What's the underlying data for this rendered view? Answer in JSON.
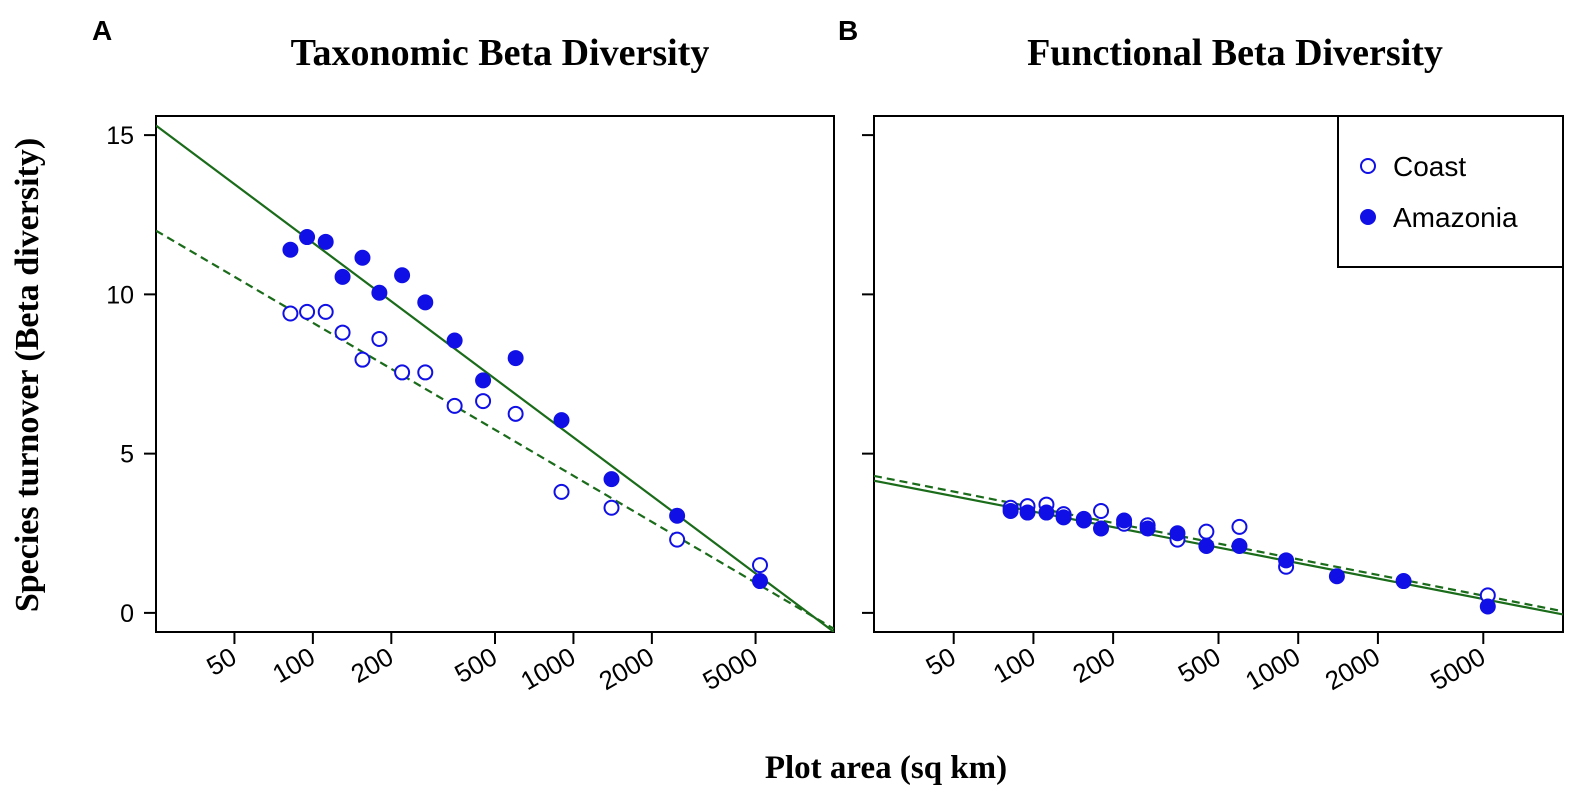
{
  "figure": {
    "xlabel": "Plot area (sq km)",
    "ylabel": "Species turnover (Beta diversity)"
  },
  "colors": {
    "point": "#1010e6",
    "line": "#1a6b1a",
    "axis": "#000000"
  },
  "chart_data": [
    {
      "panel_letter": "A",
      "title": "Taxonomic Beta Diversity",
      "type": "scatter",
      "xscale": "log",
      "xlim": [
        25,
        10000
      ],
      "ylim": [
        -0.6,
        15.6
      ],
      "x_ticks": [
        50,
        100,
        200,
        500,
        1000,
        2000,
        5000
      ],
      "x_tick_labels": [
        "50",
        "100",
        "200",
        "500",
        "1000",
        "2000",
        "5000"
      ],
      "y_ticks": [
        0,
        5,
        10,
        15
      ],
      "y_tick_labels": [
        "0",
        "5",
        "10",
        "15"
      ],
      "show_y_labels": true,
      "series": [
        {
          "name": "Coast",
          "marker": "open-circle",
          "x": [
            82,
            95,
            112,
            130,
            155,
            180,
            220,
            270,
            350,
            450,
            600,
            900,
            1400,
            2500,
            5200
          ],
          "y": [
            9.4,
            9.45,
            9.45,
            8.8,
            7.95,
            8.6,
            7.55,
            7.55,
            6.5,
            6.65,
            6.25,
            3.8,
            3.3,
            2.3,
            1.5
          ]
        },
        {
          "name": "Amazonia",
          "marker": "filled-circle",
          "x": [
            82,
            95,
            112,
            130,
            155,
            180,
            220,
            270,
            350,
            450,
            600,
            900,
            1400,
            2500,
            5200
          ],
          "y": [
            11.4,
            11.8,
            11.65,
            10.55,
            11.15,
            10.05,
            10.6,
            9.75,
            8.55,
            7.3,
            8.0,
            6.05,
            4.2,
            3.05,
            1.0
          ]
        }
      ],
      "fit_lines": [
        {
          "series": "Amazonia",
          "style": "solid",
          "x": [
            25,
            10000
          ],
          "y": [
            15.3,
            -0.6
          ]
        },
        {
          "series": "Coast",
          "style": "dashed",
          "x": [
            25,
            10000
          ],
          "y": [
            12.0,
            -0.5
          ]
        }
      ],
      "legend": null
    },
    {
      "panel_letter": "B",
      "title": "Functional Beta Diversity",
      "type": "scatter",
      "xscale": "log",
      "xlim": [
        25,
        10000
      ],
      "ylim": [
        -0.6,
        15.6
      ],
      "x_ticks": [
        50,
        100,
        200,
        500,
        1000,
        2000,
        5000
      ],
      "x_tick_labels": [
        "50",
        "100",
        "200",
        "500",
        "1000",
        "2000",
        "5000"
      ],
      "y_ticks": [
        0,
        5,
        10,
        15
      ],
      "y_tick_labels": [
        "0",
        "5",
        "10",
        "15"
      ],
      "show_y_labels": false,
      "series": [
        {
          "name": "Coast",
          "marker": "open-circle",
          "x": [
            82,
            95,
            112,
            130,
            155,
            180,
            220,
            270,
            350,
            450,
            600,
            900,
            5200
          ],
          "y": [
            3.3,
            3.35,
            3.4,
            3.1,
            2.9,
            3.2,
            2.8,
            2.75,
            2.3,
            2.55,
            2.7,
            1.45,
            0.55
          ]
        },
        {
          "name": "Amazonia",
          "marker": "filled-circle",
          "x": [
            82,
            95,
            112,
            130,
            155,
            180,
            220,
            270,
            350,
            450,
            600,
            900,
            1400,
            2500,
            5200
          ],
          "y": [
            3.2,
            3.15,
            3.15,
            3.0,
            2.95,
            2.65,
            2.9,
            2.65,
            2.5,
            2.1,
            2.1,
            1.65,
            1.15,
            1.0,
            0.2
          ]
        }
      ],
      "fit_lines": [
        {
          "series": "Amazonia",
          "style": "solid",
          "x": [
            25,
            10000
          ],
          "y": [
            4.15,
            -0.05
          ]
        },
        {
          "series": "Coast",
          "style": "dashed",
          "x": [
            25,
            10000
          ],
          "y": [
            4.3,
            0.05
          ]
        }
      ],
      "legend": {
        "position": "top-right",
        "entries": [
          {
            "label": "Coast",
            "marker": "open-circle"
          },
          {
            "label": "Amazonia",
            "marker": "filled-circle"
          }
        ]
      }
    }
  ]
}
